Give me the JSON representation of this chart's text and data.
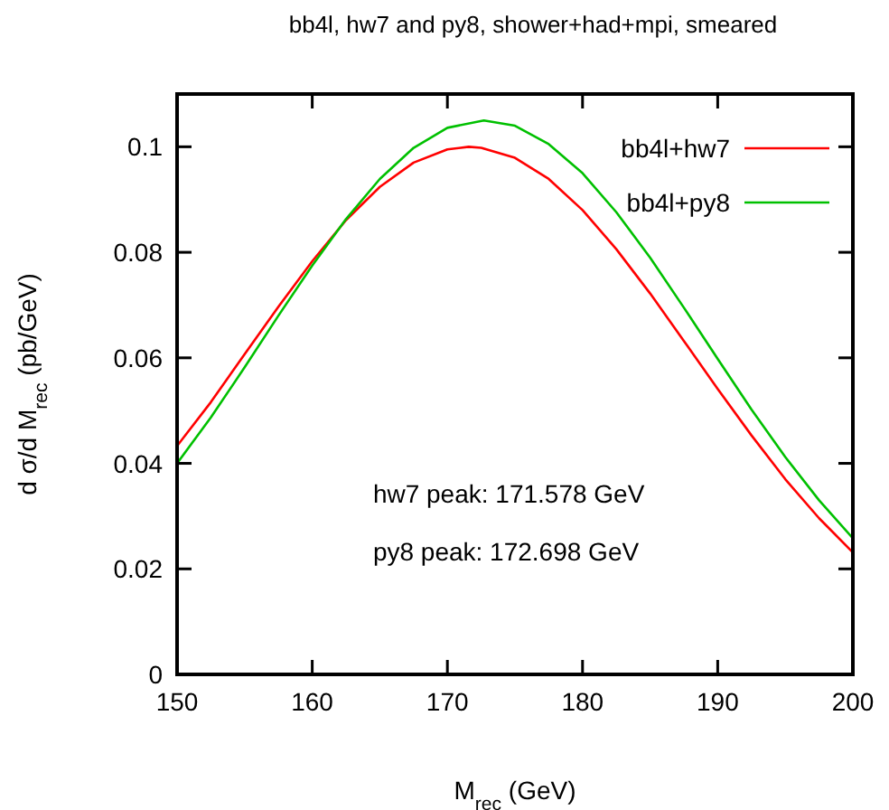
{
  "chart_data": {
    "type": "line",
    "title": "bb4l, hw7 and py8, shower+had+mpi, smeared",
    "xlabel": "M$_{rec}$ (GeV)",
    "ylabel": "d σ/d M$_{rec}$ (pb/GeV)",
    "xlim": [
      150,
      200
    ],
    "xticks": [
      150,
      160,
      170,
      180,
      190,
      200
    ],
    "ylim": [
      0,
      0.11
    ],
    "yticks": [
      0,
      0.02,
      0.04,
      0.06,
      0.08,
      0.1
    ],
    "grid": false,
    "legend": "top right",
    "marker": "none",
    "line_style": "solid",
    "series": [
      {
        "name": "bb4l+hw7",
        "color": "#ff0000",
        "x": [
          150,
          152.5,
          155,
          157.5,
          160,
          162.5,
          165,
          167.5,
          170,
          171.578,
          172.5,
          175,
          177.5,
          180,
          182.5,
          185,
          187.5,
          190,
          192.5,
          195,
          197.5,
          200
        ],
        "values": [
          0.0433,
          0.0516,
          0.0607,
          0.0697,
          0.0783,
          0.0861,
          0.0924,
          0.097,
          0.0995,
          0.1,
          0.0998,
          0.0979,
          0.0939,
          0.088,
          0.0806,
          0.0722,
          0.0632,
          0.0541,
          0.0453,
          0.037,
          0.0296,
          0.0231
        ]
      },
      {
        "name": "bb4l+py8",
        "color": "#00c000",
        "x": [
          150,
          152.5,
          155,
          157.5,
          160,
          162.5,
          165,
          167.5,
          170,
          172.698,
          175,
          177.5,
          180,
          182.5,
          185,
          187.5,
          190,
          192.5,
          195,
          197.5,
          200
        ],
        "values": [
          0.04,
          0.0487,
          0.0582,
          0.068,
          0.0775,
          0.0863,
          0.0939,
          0.0998,
          0.1036,
          0.105,
          0.104,
          0.1005,
          0.095,
          0.0876,
          0.079,
          0.0695,
          0.0598,
          0.0502,
          0.0412,
          0.033,
          0.0258
        ]
      }
    ],
    "annotations": [
      "hw7 peak: 171.578 GeV",
      "py8 peak: 172.698 GeV"
    ]
  }
}
